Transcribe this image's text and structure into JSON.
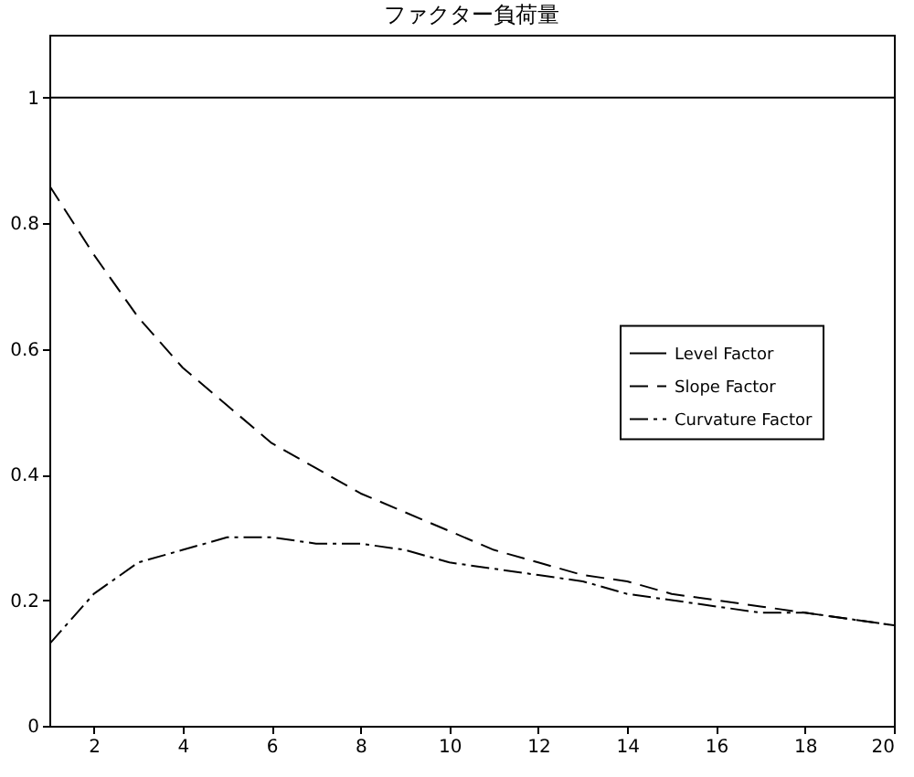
{
  "chart_data": {
    "type": "line",
    "title": "ファクター負荷量",
    "x": [
      1,
      2,
      3,
      4,
      5,
      6,
      7,
      8,
      9,
      10,
      11,
      12,
      13,
      14,
      15,
      16,
      17,
      18,
      19,
      20
    ],
    "xlim": [
      1,
      20
    ],
    "xticks": [
      2,
      4,
      6,
      8,
      10,
      12,
      14,
      16,
      18,
      20
    ],
    "ylim": [
      0,
      1.1
    ],
    "yticks": [
      0,
      0.2,
      0.4,
      0.6,
      0.8,
      1
    ],
    "grid": false,
    "legend": "right",
    "marker": "none",
    "series": [
      {
        "name": "Level Factor",
        "color": "#000000",
        "line_style": "solid",
        "values": [
          1,
          1,
          1,
          1,
          1,
          1,
          1,
          1,
          1,
          1,
          1,
          1,
          1,
          1,
          1,
          1,
          1,
          1,
          1,
          1
        ]
      },
      {
        "name": "Slope Factor",
        "color": "#000000",
        "line_style": "dashed",
        "values": [
          0.86,
          0.75,
          0.65,
          0.57,
          0.51,
          0.45,
          0.41,
          0.37,
          0.34,
          0.31,
          0.28,
          0.26,
          0.24,
          0.23,
          0.21,
          0.2,
          0.19,
          0.18,
          0.17,
          0.16
        ]
      },
      {
        "name": "Curvature Factor",
        "color": "#000000",
        "line_style": "dashdot",
        "values": [
          0.13,
          0.21,
          0.26,
          0.28,
          0.3,
          0.3,
          0.29,
          0.29,
          0.28,
          0.26,
          0.25,
          0.24,
          0.23,
          0.21,
          0.2,
          0.19,
          0.18,
          0.18,
          0.17,
          0.16
        ]
      }
    ]
  }
}
